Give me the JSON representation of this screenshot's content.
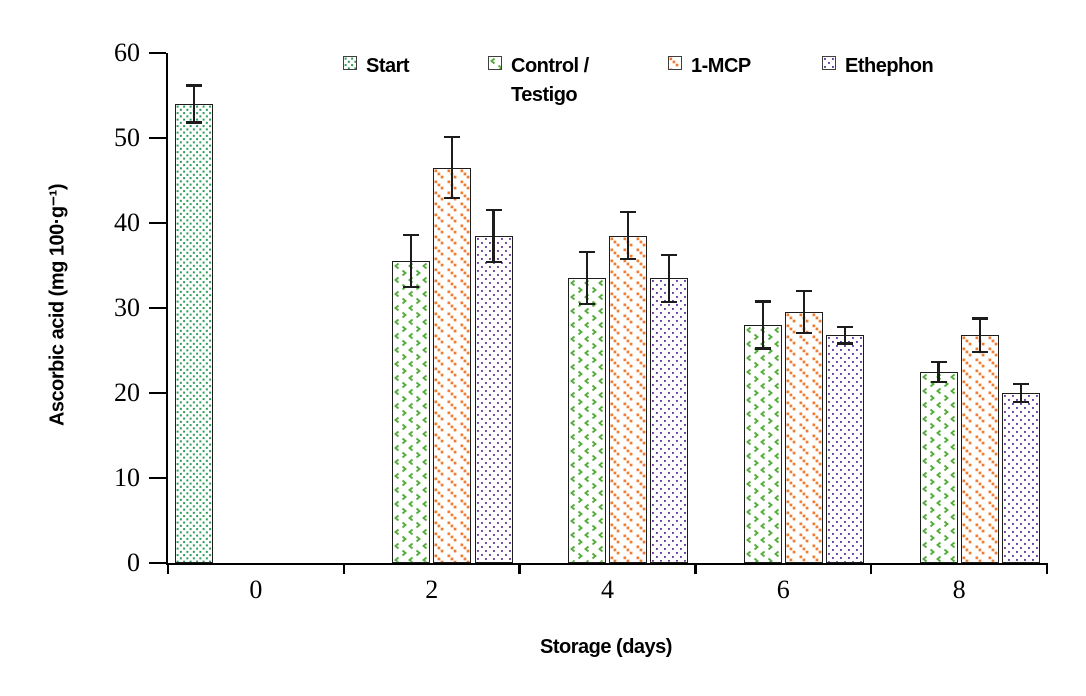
{
  "chart_data": {
    "type": "bar",
    "title": "",
    "xlabel": "Storage (days)",
    "ylabel": "Ascorbic acid (mg 100·g⁻¹)",
    "ylim": [
      0,
      60
    ],
    "yticks": [
      0,
      10,
      20,
      30,
      40,
      50,
      60
    ],
    "categories": [
      "0",
      "2",
      "4",
      "6",
      "8"
    ],
    "grid": false,
    "legend_position": "top",
    "series": [
      {
        "name": "Start",
        "color": "#2a9d58",
        "pattern": "fine-dots",
        "values": [
          54,
          null,
          null,
          null,
          null
        ],
        "errors": [
          2.3,
          null,
          null,
          null,
          null
        ]
      },
      {
        "name": "Control / Testigo",
        "color": "#52ad3b",
        "pattern": "divot",
        "values": [
          null,
          35.5,
          33.5,
          28,
          22.5
        ],
        "errors": [
          null,
          3.2,
          3.2,
          2.9,
          1.3
        ]
      },
      {
        "name": "1-MCP",
        "color": "#ee7d33",
        "pattern": "diagonal-dashes",
        "values": [
          null,
          46.5,
          38.5,
          29.5,
          26.8
        ],
        "errors": [
          null,
          3.7,
          2.9,
          2.6,
          2.1
        ]
      },
      {
        "name": "Ethephon",
        "color": "#6a3e9e",
        "pattern": "sparse-dots",
        "values": [
          null,
          38.5,
          33.5,
          26.8,
          20
        ],
        "errors": [
          null,
          3.2,
          2.9,
          1.1,
          1.2
        ]
      }
    ]
  }
}
